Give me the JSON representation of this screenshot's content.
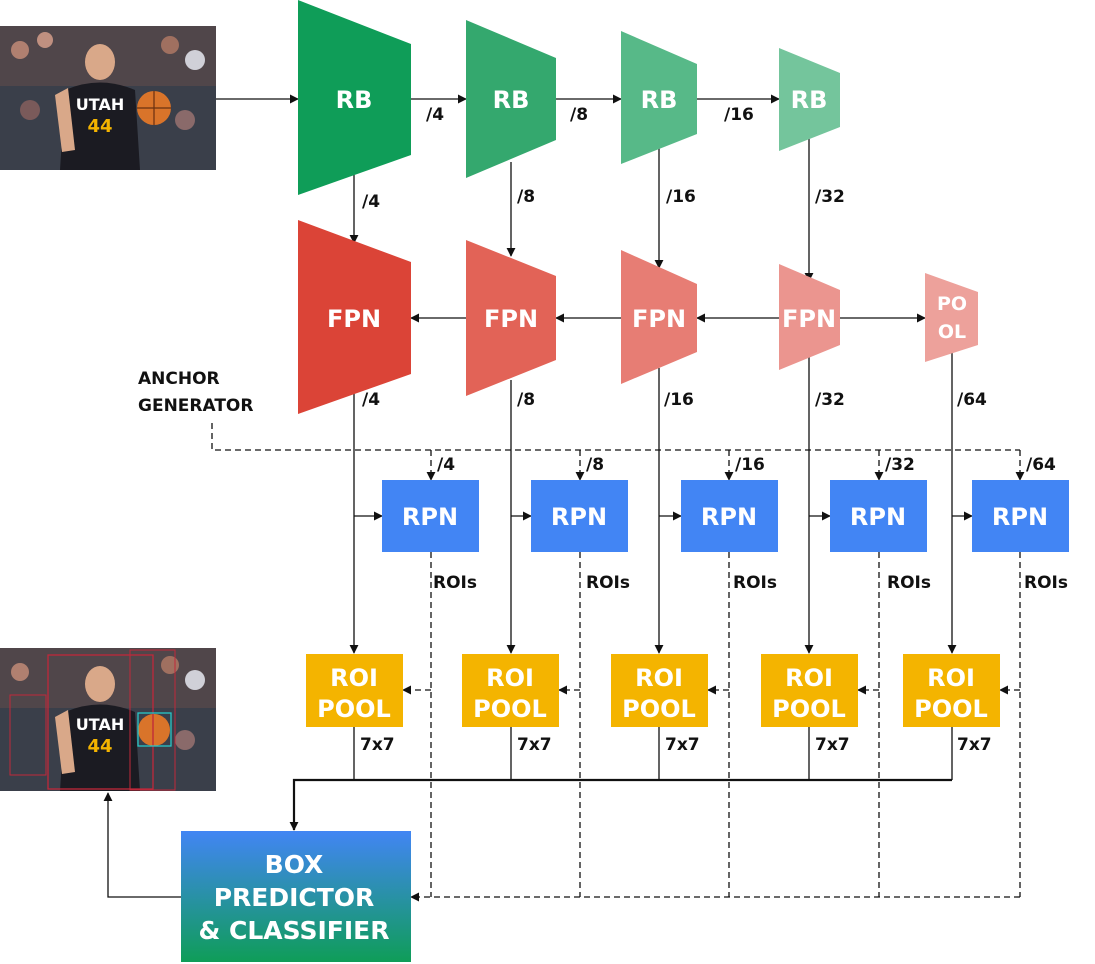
{
  "backbone": {
    "blocks": [
      {
        "label": "RB",
        "color": "#0f9d58"
      },
      {
        "label": "RB",
        "color": "#34a86e"
      },
      {
        "label": "RB",
        "color": "#57b988"
      },
      {
        "label": "RB",
        "color": "#74c59c"
      }
    ],
    "horizontal_scales": [
      "/4",
      "/8",
      "/16"
    ],
    "down_scales": [
      "/4",
      "/8",
      "/16",
      "/32"
    ]
  },
  "fpn": {
    "blocks": [
      {
        "label": "FPN",
        "color": "#db4437"
      },
      {
        "label": "FPN",
        "color": "#e26357"
      },
      {
        "label": "FPN",
        "color": "#e77d74"
      },
      {
        "label": "FPN",
        "color": "#eb958f"
      }
    ],
    "pool": {
      "line1": "PO",
      "line2": "OL",
      "color": "#eda19b"
    },
    "down_scales": [
      "/4",
      "/8",
      "/16",
      "/32",
      "/64"
    ]
  },
  "anchor_generator": {
    "line1": "ANCHOR",
    "line2": "GENERATOR",
    "scales": [
      "/4",
      "/8",
      "/16",
      "/32",
      "/64"
    ]
  },
  "rpn": {
    "label": "RPN",
    "color": "#4285f4",
    "rois_label": "ROIs",
    "count": 5
  },
  "roi_pool": {
    "line1": "ROI",
    "line2": "POOL",
    "color": "#f4b400",
    "size_label": "7x7",
    "count": 5
  },
  "box_predictor": {
    "line1": "BOX",
    "line2": "PREDICTOR",
    "line3": "& CLASSIFIER",
    "color_top": "#4285f4",
    "color_bottom": "#0f9d58"
  },
  "input_image": {
    "jersey_text": "UTAH",
    "number": "44"
  },
  "output_image": {
    "jersey_text": "UTAH",
    "number": "44"
  }
}
